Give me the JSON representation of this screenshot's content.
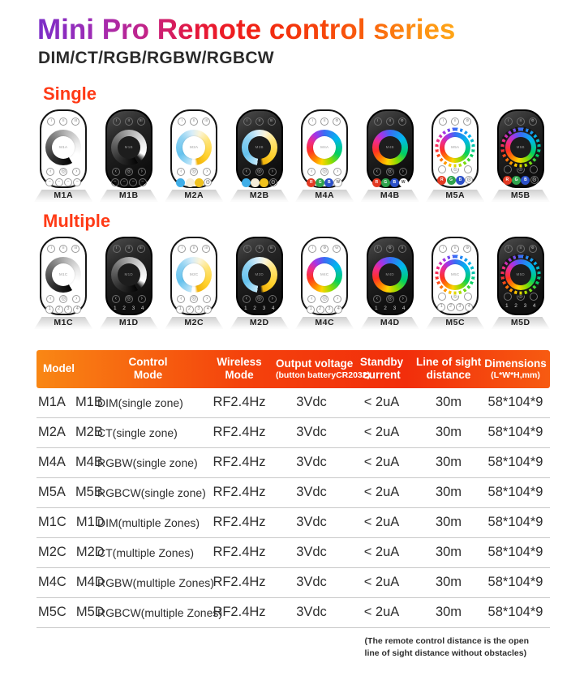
{
  "header": {
    "title": "Mini Pro  Remote control series",
    "subtitle": "DIM/CT/RGB/RGBW/RGBCW"
  },
  "colors": {
    "section_label": "#FF3A16",
    "table_header_gradient": [
      "#F98714",
      "#F22E0B",
      "#F75B11"
    ],
    "title_gradient": [
      "#7B2EC8",
      "#E5173B",
      "#F4380C",
      "#FFA617"
    ],
    "ct_dots": [
      "#3FAEE8",
      "#F5EDD9",
      "#EFC11D"
    ],
    "rgb_buttons": [
      "#E23A23",
      "#2FA34D",
      "#2B50C8"
    ]
  },
  "remote_ui": {
    "arrow_left": "‹",
    "power_glyph": "◎",
    "arrow_right": "›",
    "gear_glyph": "⚙",
    "scene_glyph": "∽",
    "zone_numbers": [
      "1",
      "2",
      "3",
      "4"
    ],
    "rgb_labels": [
      "R",
      "G",
      "B"
    ],
    "white_label": "W"
  },
  "sections": [
    {
      "label": "Single",
      "remotes": [
        {
          "model": "M1A",
          "body": "white",
          "dial": "dim",
          "top": [
            "I",
            "II",
            "III"
          ],
          "mid": "arrows",
          "bottom": "scenes"
        },
        {
          "model": "M1B",
          "body": "black",
          "dial": "dim",
          "top": [
            "I",
            "II",
            "III"
          ],
          "mid": "arrows",
          "bottom": "scenes"
        },
        {
          "model": "M2A",
          "body": "white",
          "dial": "ct",
          "top": [
            "I",
            "II",
            "III"
          ],
          "mid": "arrows",
          "bottom": "ctdots"
        },
        {
          "model": "M2B",
          "body": "black",
          "dial": "ct",
          "top": [
            "I",
            "II",
            "III"
          ],
          "mid": "arrows",
          "bottom": "ctdots"
        },
        {
          "model": "M4A",
          "body": "white",
          "dial": "rgb",
          "top": [
            "I",
            "II",
            "⚙"
          ],
          "mid": "arrows",
          "bottom": "rgbw"
        },
        {
          "model": "M4B",
          "body": "black",
          "dial": "rgb",
          "top": [
            "I",
            "II",
            "⚙"
          ],
          "mid": "arrows",
          "bottom": "rgbw"
        },
        {
          "model": "M5A",
          "body": "white",
          "dial": "rgbcw",
          "top": [
            "I",
            "II",
            "⚙"
          ],
          "mid": "color",
          "bottom": "rgbgear"
        },
        {
          "model": "M5B",
          "body": "black",
          "dial": "rgbcw",
          "top": [
            "I",
            "II",
            "⚙"
          ],
          "mid": "color",
          "bottom": "rgbgear"
        }
      ]
    },
    {
      "label": "Multiple",
      "remotes": [
        {
          "model": "M1C",
          "body": "white",
          "dial": "dim",
          "top": [
            "I",
            "II",
            "III"
          ],
          "mid": "arrows",
          "bottom": "zones"
        },
        {
          "model": "M1D",
          "body": "black",
          "dial": "dim",
          "top": [
            "I",
            "II",
            "III"
          ],
          "mid": "arrows",
          "bottom": "zones"
        },
        {
          "model": "M2C",
          "body": "white",
          "dial": "ct",
          "top": [
            "I",
            "II",
            "III"
          ],
          "mid": "arrows",
          "bottom": "zones"
        },
        {
          "model": "M2D",
          "body": "black",
          "dial": "ct",
          "top": [
            "I",
            "II",
            "III"
          ],
          "mid": "arrows",
          "bottom": "zones"
        },
        {
          "model": "M4C",
          "body": "white",
          "dial": "rgb",
          "top": [
            "I",
            "⚙",
            "W"
          ],
          "mid": "arrows",
          "bottom": "zones"
        },
        {
          "model": "M4D",
          "body": "black",
          "dial": "rgb",
          "top": [
            "I",
            "⚙",
            "II"
          ],
          "mid": "arrows",
          "bottom": "zones"
        },
        {
          "model": "M5C",
          "body": "white",
          "dial": "rgbcw",
          "top": [
            "I",
            "II",
            "⚙"
          ],
          "mid": "color",
          "bottom": "zones"
        },
        {
          "model": "M5D",
          "body": "black",
          "dial": "rgbcw",
          "top": [
            "I",
            "II",
            "⚙"
          ],
          "mid": "color",
          "bottom": "zones"
        }
      ]
    }
  ],
  "table": {
    "columns": [
      {
        "l1": "Model",
        "l2": ""
      },
      {
        "l1": "Control",
        "l2": "Mode"
      },
      {
        "l1": "Wireless",
        "l2": "Mode"
      },
      {
        "l1": "Output voltage",
        "l2": "(button batteryCR2032)"
      },
      {
        "l1": "Standby",
        "l2": "current"
      },
      {
        "l1": "Line of sight",
        "l2": "distance"
      },
      {
        "l1": "Dimensions",
        "l2": "(L*W*H,mm)"
      }
    ],
    "rows": [
      {
        "m1": "M1A",
        "m2": "M1B",
        "mode": "DIM(single  zone)",
        "wireless": "RF2.4Hz",
        "voltage": "3Vdc",
        "standby": "< 2uA",
        "distance": "30m",
        "dims": "58*104*9"
      },
      {
        "m1": "M2A",
        "m2": "M2B",
        "mode": "CT(single zone)",
        "wireless": "RF2.4Hz",
        "voltage": "3Vdc",
        "standby": "< 2uA",
        "distance": "30m",
        "dims": "58*104*9"
      },
      {
        "m1": "M4A",
        "m2": "M4B",
        "mode": "RGBW(single zone)",
        "wireless": "RF2.4Hz",
        "voltage": "3Vdc",
        "standby": "< 2uA",
        "distance": "30m",
        "dims": "58*104*9"
      },
      {
        "m1": "M5A",
        "m2": "M5B",
        "mode": "RGBCW(single zone)",
        "wireless": "RF2.4Hz",
        "voltage": "3Vdc",
        "standby": "< 2uA",
        "distance": "30m",
        "dims": "58*104*9"
      },
      {
        "m1": "M1C",
        "m2": "M1D",
        "mode": "DIM(multiple Zones)",
        "wireless": "RF2.4Hz",
        "voltage": "3Vdc",
        "standby": "< 2uA",
        "distance": "30m",
        "dims": "58*104*9"
      },
      {
        "m1": "M2C",
        "m2": "M2D",
        "mode": "CT(multiple Zones)",
        "wireless": "RF2.4Hz",
        "voltage": "3Vdc",
        "standby": "< 2uA",
        "distance": "30m",
        "dims": "58*104*9"
      },
      {
        "m1": "M4C",
        "m2": "M4D",
        "mode": "RGBW(multiple Zones)",
        "wireless": "RF2.4Hz",
        "voltage": "3Vdc",
        "standby": "< 2uA",
        "distance": "30m",
        "dims": "58*104*9"
      },
      {
        "m1": "M5C",
        "m2": "M5D",
        "mode": "RGBCW(multiple Zones)",
        "wireless": "RF2.4Hz",
        "voltage": "3Vdc",
        "standby": "< 2uA",
        "distance": "30m",
        "dims": "58*104*9"
      }
    ]
  },
  "footnote": {
    "line1": "(The remote control distance is the open",
    "line2": "line of sight distance without obstacles)"
  }
}
